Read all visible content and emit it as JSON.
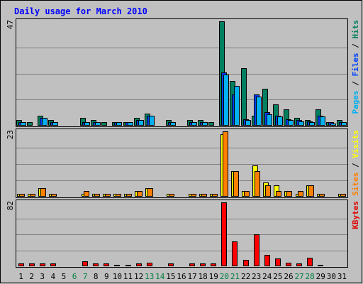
{
  "chart_data": {
    "type": "bar",
    "title": "Daily usage for March 2010",
    "categories": [
      "1",
      "2",
      "3",
      "4",
      "5",
      "6",
      "7",
      "8",
      "9",
      "10",
      "11",
      "12",
      "13",
      "14",
      "15",
      "16",
      "17",
      "18",
      "19",
      "20",
      "21",
      "22",
      "23",
      "24",
      "25",
      "26",
      "27",
      "28",
      "29",
      "30",
      "31"
    ],
    "weekend_days": [
      "6",
      "7",
      "13",
      "14",
      "20",
      "21",
      "27",
      "28"
    ],
    "panels": [
      {
        "scale_label": "47",
        "ylim": [
          0,
          47
        ],
        "label_parts": [
          {
            "text": "Pages",
            "color": "#00b0f0"
          },
          {
            "text": " / ",
            "color": "#000000"
          },
          {
            "text": "Files",
            "color": "#0040ff"
          },
          {
            "text": " / ",
            "color": "#000000"
          },
          {
            "text": "Hits",
            "color": "#008060"
          }
        ],
        "series": [
          {
            "name": "Hits",
            "color": "#008060",
            "values": [
              2.5,
              1.5,
              4.5,
              2.5,
              0,
              0,
              3.5,
              2.5,
              1.5,
              1.5,
              1.5,
              3.5,
              5.5,
              0,
              2.5,
              0,
              2.5,
              2.5,
              1.5,
              47,
              20,
              26,
              4.5,
              16.5,
              9.5,
              7.5,
              3.5,
              2.5,
              7.5,
              1.5,
              2.5
            ]
          },
          {
            "name": "Files",
            "color": "#0040ff",
            "values": [
              1.5,
              0,
              3.5,
              1.5,
              0,
              0,
              1.5,
              1.5,
              0,
              1.5,
              1.5,
              2.5,
              4.5,
              0,
              1.5,
              0,
              1.5,
              1.5,
              0,
              24,
              14,
              3,
              14,
              6,
              4.5,
              3,
              2.5,
              2,
              4.5,
              1.5,
              1.5
            ]
          },
          {
            "name": "Pages",
            "color": "#00b0f0",
            "values": [
              1.5,
              0,
              3.5,
              1.5,
              0,
              0,
              1.5,
              1.5,
              0,
              1.5,
              1.5,
              2.5,
              4.5,
              0,
              1.5,
              0,
              1.5,
              1.5,
              0,
              23,
              18,
              2.5,
              13,
              5,
              4,
              2.5,
              2,
              1.5,
              4,
              1,
              1.5
            ]
          }
        ]
      },
      {
        "scale_label": "23",
        "ylim": [
          0,
          23
        ],
        "label_parts": [
          {
            "text": "Sites",
            "color": "#ff8000"
          },
          {
            "text": " / ",
            "color": "#000000"
          },
          {
            "text": "Visits",
            "color": "#ffff00"
          }
        ],
        "series": [
          {
            "name": "Visits",
            "color": "#ffff00",
            "values": [
              1,
              1,
              3,
              1,
              0,
              0,
              1,
              1,
              1,
              1,
              1,
              2,
              3,
              0,
              1,
              0,
              1,
              1,
              1,
              22,
              9,
              2,
              11,
              5,
              4,
              2,
              1,
              4,
              1,
              0,
              1
            ]
          },
          {
            "name": "Sites",
            "color": "#ff8000",
            "values": [
              1,
              1,
              3,
              1,
              0,
              0,
              2,
              1,
              1,
              1,
              1,
              2,
              3,
              0,
              1,
              0,
              1,
              1,
              1,
              23,
              9,
              2,
              9,
              4,
              2,
              2,
              2,
              4,
              1,
              0,
              1
            ]
          }
        ]
      },
      {
        "scale_label": "82",
        "ylim": [
          0,
          82
        ],
        "label_parts": [
          {
            "text": "KBytes",
            "color": "#e00000"
          }
        ],
        "series": [
          {
            "name": "KBytes",
            "color": "#ff0000",
            "values": [
              4,
              4,
              4,
              4,
              0,
              0,
              6,
              4,
              4,
              0.5,
              0.5,
              4,
              5,
              0,
              4,
              0,
              4,
              4,
              4,
              82,
              32,
              8,
              41,
              15,
              10,
              5,
              4,
              11,
              0.5,
              0,
              0
            ]
          }
        ]
      }
    ]
  }
}
